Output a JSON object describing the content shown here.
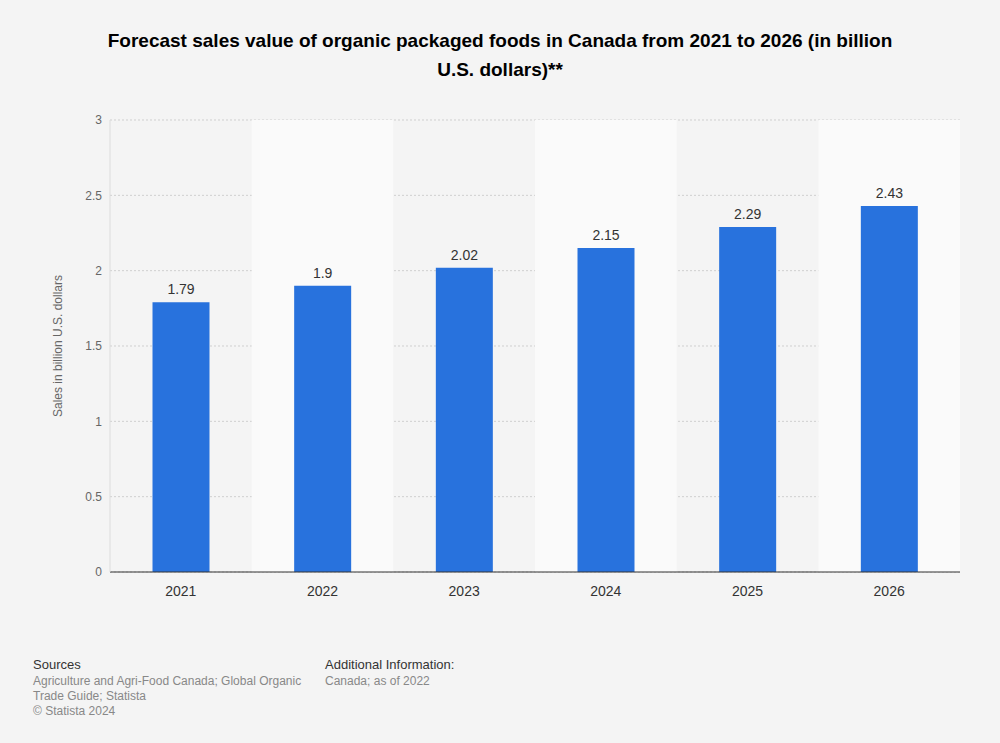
{
  "chart_data": {
    "type": "bar",
    "title": "Forecast sales value of organic packaged foods in Canada from 2021 to 2026 (in billion U.S. dollars)**",
    "y_label": "Sales in billion U.S. dollars",
    "categories": [
      "2021",
      "2022",
      "2023",
      "2024",
      "2025",
      "2026"
    ],
    "values": [
      1.79,
      1.9,
      2.02,
      2.15,
      2.29,
      2.43
    ],
    "color": "#2872dd",
    "ylim": [
      0,
      3
    ],
    "yticks": [
      0,
      0.5,
      1,
      1.5,
      2,
      2.5,
      3
    ],
    "grid": true,
    "data_labels": true,
    "sources_title": "Sources",
    "sources": [
      "Agriculture and Agri-Food Canada; Global Organic",
      "Trade Guide; Statista",
      "© Statista 2024"
    ],
    "additional_info_title": "Additional Information:",
    "additional_info": "Canada; as of 2022"
  }
}
